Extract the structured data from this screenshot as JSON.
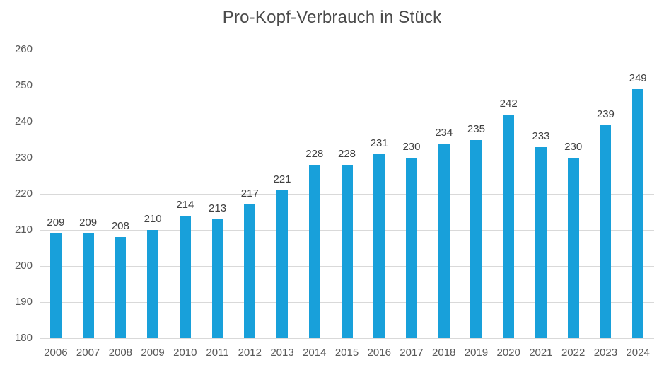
{
  "title": "Pro-Kopf-Verbrauch in Stück",
  "colors": {
    "bar": "#18a0da",
    "gridline": "#d9d9d9",
    "title_text": "#4a4a4a",
    "axis_text": "#595959",
    "value_label_text": "#404040",
    "background": "#ffffff"
  },
  "chart_data": {
    "type": "bar",
    "title": "Pro-Kopf-Verbrauch in Stück",
    "categories": [
      "2006",
      "2007",
      "2008",
      "2009",
      "2010",
      "2011",
      "2012",
      "2013",
      "2014",
      "2015",
      "2016",
      "2017",
      "2018",
      "2019",
      "2020",
      "2021",
      "2022",
      "2023",
      "2024"
    ],
    "values": [
      209,
      209,
      208,
      210,
      214,
      213,
      217,
      221,
      228,
      228,
      231,
      230,
      234,
      235,
      242,
      233,
      230,
      239,
      249
    ],
    "xlabel": "",
    "ylabel": "",
    "ylim": [
      180,
      260
    ],
    "ytick_step": 10,
    "yticks": [
      180,
      190,
      200,
      210,
      220,
      230,
      240,
      250,
      260
    ],
    "grid": true,
    "legend": false,
    "data_labels": true
  }
}
